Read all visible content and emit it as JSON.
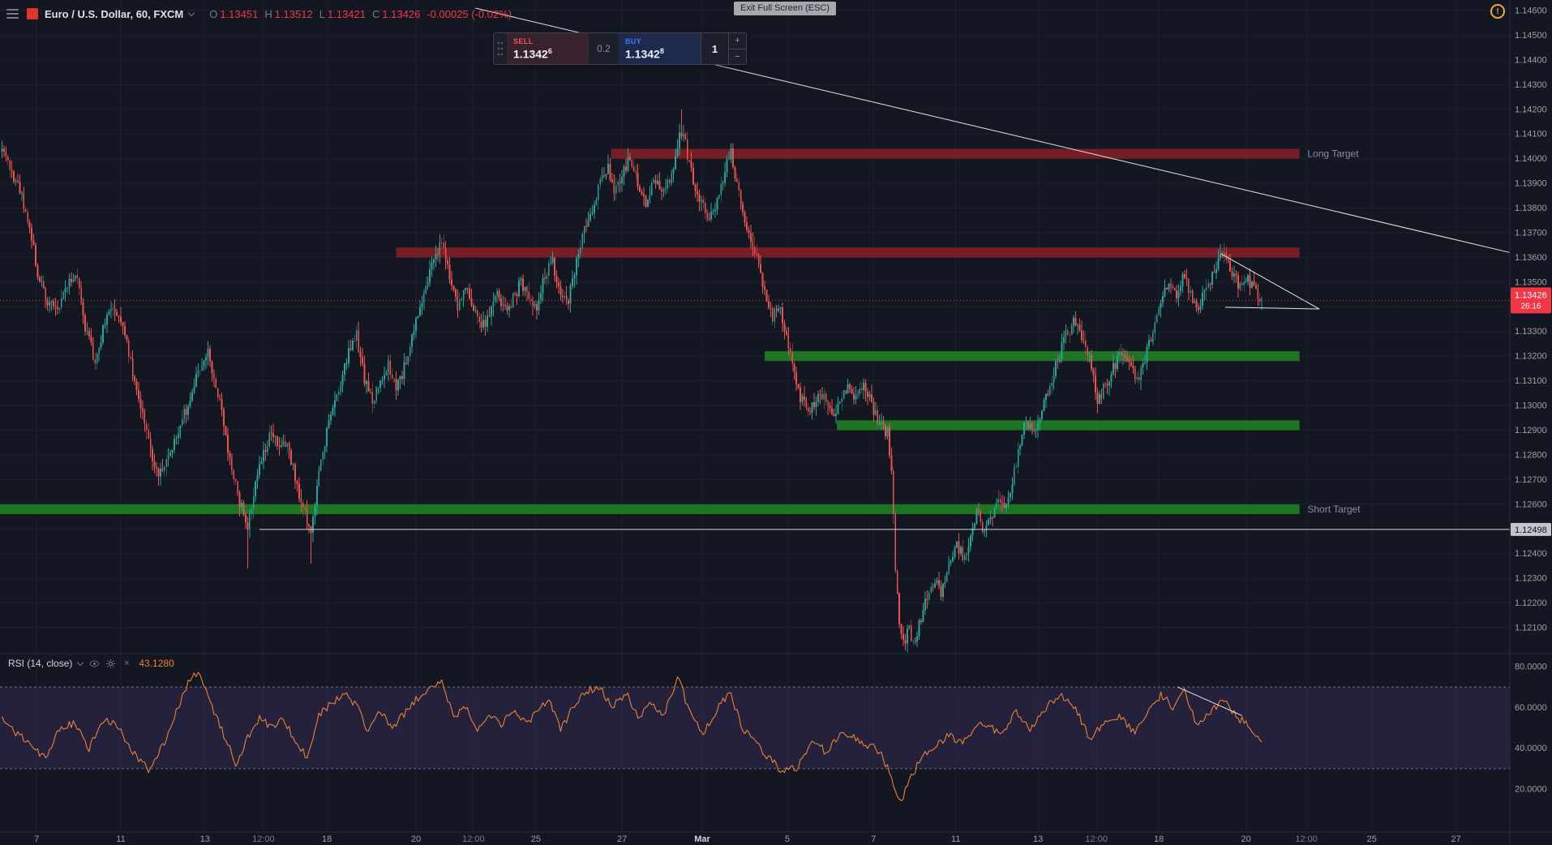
{
  "header": {
    "symbol_title": "Euro / U.S. Dollar, 60, FXCM",
    "ohlc": {
      "o_label": "O",
      "o_value": "1.13451",
      "h_label": "H",
      "h_value": "1.13512",
      "l_label": "L",
      "l_value": "1.13421",
      "c_label": "C",
      "c_value": "1.13426",
      "change": "-0.00025 (-0.02%)"
    }
  },
  "tooltip": {
    "text": "Exit Full Screen (ESC)"
  },
  "order_panel": {
    "sell_label": "SELL",
    "sell_price": "1.1342",
    "sell_sup": "6",
    "spread": "0.2",
    "buy_label": "BUY",
    "buy_price": "1.1342",
    "buy_sup": "8",
    "qty": "1",
    "increase": "+",
    "decrease": "−"
  },
  "alert_icon": {
    "symbol": "!"
  },
  "rsi_header": {
    "title": "RSI (14, close)",
    "value": "43.1280"
  },
  "axis": {
    "price_ticks": [
      "1.14600",
      "1.14500",
      "1.14400",
      "1.14300",
      "1.14200",
      "1.14100",
      "1.14000",
      "1.13900",
      "1.13800",
      "1.13700",
      "1.13600",
      "1.13500",
      "1.13400",
      "1.13300",
      "1.13200",
      "1.13100",
      "1.13000",
      "1.12900",
      "1.12800",
      "1.12700",
      "1.12600",
      "1.12500",
      "1.12400",
      "1.12300",
      "1.12200",
      "1.12100"
    ],
    "rsi_ticks": [
      "80.0000",
      "60.0000",
      "40.0000",
      "20.0000"
    ],
    "time_ticks": [
      {
        "u": 37,
        "label": "7"
      },
      {
        "u": 122,
        "label": "11"
      },
      {
        "u": 207,
        "label": "13"
      },
      {
        "u": 266,
        "label": "12:00"
      },
      {
        "u": 330,
        "label": "18"
      },
      {
        "u": 420,
        "label": "20"
      },
      {
        "u": 478,
        "label": "12:00"
      },
      {
        "u": 541,
        "label": "25"
      },
      {
        "u": 628,
        "label": "27"
      },
      {
        "u": 709,
        "label": "Mar"
      },
      {
        "u": 795,
        "label": "5"
      },
      {
        "u": 882,
        "label": "7"
      },
      {
        "u": 965,
        "label": "11"
      },
      {
        "u": 1048,
        "label": "13"
      },
      {
        "u": 1107,
        "label": "12:00"
      },
      {
        "u": 1170,
        "label": "18"
      },
      {
        "u": 1258,
        "label": "20"
      },
      {
        "u": 1319,
        "label": "12:00"
      },
      {
        "u": 1385,
        "label": "25"
      },
      {
        "u": 1470,
        "label": "27"
      }
    ],
    "current_price_label": "1.13426",
    "countdown": "26:16",
    "hline_label": "1.12498"
  },
  "chart_data": {
    "type": "candlestick",
    "title": "Euro / U.S. Dollar, 60, FXCM",
    "ylim": [
      1.121,
      1.146
    ],
    "current_price": 1.13426,
    "price_anchors": [
      [
        0,
        1.1408
      ],
      [
        10,
        1.1396
      ],
      [
        20,
        1.1388
      ],
      [
        28,
        1.1376
      ],
      [
        38,
        1.1354
      ],
      [
        48,
        1.1342
      ],
      [
        58,
        1.1338
      ],
      [
        68,
        1.135
      ],
      [
        78,
        1.1352
      ],
      [
        86,
        1.1332
      ],
      [
        96,
        1.1318
      ],
      [
        106,
        1.1334
      ],
      [
        116,
        1.134
      ],
      [
        126,
        1.133
      ],
      [
        136,
        1.1308
      ],
      [
        146,
        1.1294
      ],
      [
        154,
        1.1278
      ],
      [
        162,
        1.1272
      ],
      [
        172,
        1.1282
      ],
      [
        182,
        1.1292
      ],
      [
        192,
        1.1302
      ],
      [
        202,
        1.1316
      ],
      [
        210,
        1.1321
      ],
      [
        218,
        1.1308
      ],
      [
        226,
        1.1292
      ],
      [
        234,
        1.1274
      ],
      [
        242,
        1.1261
      ],
      [
        250,
        1.1251
      ],
      [
        258,
        1.127
      ],
      [
        266,
        1.1281
      ],
      [
        274,
        1.129
      ],
      [
        282,
        1.1281
      ],
      [
        290,
        1.1286
      ],
      [
        298,
        1.1271
      ],
      [
        306,
        1.1258
      ],
      [
        314,
        1.1249
      ],
      [
        322,
        1.1272
      ],
      [
        332,
        1.1293
      ],
      [
        342,
        1.1306
      ],
      [
        352,
        1.1321
      ],
      [
        360,
        1.1328
      ],
      [
        368,
        1.1311
      ],
      [
        376,
        1.1301
      ],
      [
        384,
        1.1311
      ],
      [
        392,
        1.1316
      ],
      [
        400,
        1.1306
      ],
      [
        408,
        1.1315
      ],
      [
        416,
        1.1328
      ],
      [
        424,
        1.1341
      ],
      [
        432,
        1.1352
      ],
      [
        440,
        1.136
      ],
      [
        447,
        1.1367
      ],
      [
        454,
        1.1351
      ],
      [
        462,
        1.1341
      ],
      [
        470,
        1.1348
      ],
      [
        478,
        1.1338
      ],
      [
        486,
        1.1331
      ],
      [
        494,
        1.1336
      ],
      [
        502,
        1.1345
      ],
      [
        510,
        1.1338
      ],
      [
        518,
        1.1343
      ],
      [
        526,
        1.135
      ],
      [
        534,
        1.1344
      ],
      [
        542,
        1.1339
      ],
      [
        550,
        1.1353
      ],
      [
        558,
        1.1358
      ],
      [
        566,
        1.1345
      ],
      [
        574,
        1.1343
      ],
      [
        582,
        1.1358
      ],
      [
        590,
        1.1371
      ],
      [
        598,
        1.138
      ],
      [
        606,
        1.139
      ],
      [
        614,
        1.1397
      ],
      [
        620,
        1.1387
      ],
      [
        628,
        1.1394
      ],
      [
        636,
        1.14
      ],
      [
        644,
        1.1391
      ],
      [
        652,
        1.1383
      ],
      [
        660,
        1.1392
      ],
      [
        668,
        1.1387
      ],
      [
        676,
        1.1391
      ],
      [
        684,
        1.1405
      ],
      [
        689,
        1.1413
      ],
      [
        694,
        1.1401
      ],
      [
        702,
        1.1389
      ],
      [
        710,
        1.138
      ],
      [
        718,
        1.1376
      ],
      [
        726,
        1.1386
      ],
      [
        733,
        1.1396
      ],
      [
        737,
        1.1404
      ],
      [
        742,
        1.1394
      ],
      [
        748,
        1.1381
      ],
      [
        756,
        1.1368
      ],
      [
        764,
        1.1359
      ],
      [
        772,
        1.1346
      ],
      [
        780,
        1.1336
      ],
      [
        786,
        1.1341
      ],
      [
        792,
        1.133
      ],
      [
        800,
        1.1316
      ],
      [
        808,
        1.1303
      ],
      [
        816,
        1.1297
      ],
      [
        824,
        1.1302
      ],
      [
        832,
        1.1306
      ],
      [
        840,
        1.1296
      ],
      [
        848,
        1.1301
      ],
      [
        856,
        1.1309
      ],
      [
        864,
        1.1303
      ],
      [
        872,
        1.1309
      ],
      [
        880,
        1.13
      ],
      [
        888,
        1.1293
      ],
      [
        896,
        1.1289
      ],
      [
        900,
        1.1272
      ],
      [
        904,
        1.1235
      ],
      [
        908,
        1.1212
      ],
      [
        913,
        1.1205
      ],
      [
        918,
        1.1209
      ],
      [
        923,
        1.1204
      ],
      [
        928,
        1.1212
      ],
      [
        936,
        1.1222
      ],
      [
        944,
        1.123
      ],
      [
        950,
        1.1224
      ],
      [
        958,
        1.1234
      ],
      [
        966,
        1.1244
      ],
      [
        974,
        1.1238
      ],
      [
        980,
        1.1249
      ],
      [
        987,
        1.1257
      ],
      [
        992,
        1.1248
      ],
      [
        1000,
        1.1254
      ],
      [
        1008,
        1.1264
      ],
      [
        1016,
        1.1259
      ],
      [
        1022,
        1.1269
      ],
      [
        1029,
        1.1284
      ],
      [
        1036,
        1.1294
      ],
      [
        1044,
        1.1288
      ],
      [
        1052,
        1.1297
      ],
      [
        1060,
        1.1309
      ],
      [
        1068,
        1.1319
      ],
      [
        1076,
        1.1328
      ],
      [
        1084,
        1.1334
      ],
      [
        1092,
        1.1328
      ],
      [
        1100,
        1.1318
      ],
      [
        1108,
        1.1302
      ],
      [
        1116,
        1.1308
      ],
      [
        1124,
        1.1315
      ],
      [
        1132,
        1.1322
      ],
      [
        1140,
        1.1317
      ],
      [
        1148,
        1.131
      ],
      [
        1156,
        1.1319
      ],
      [
        1164,
        1.1331
      ],
      [
        1172,
        1.1342
      ],
      [
        1180,
        1.135
      ],
      [
        1188,
        1.1344
      ],
      [
        1195,
        1.1354
      ],
      [
        1202,
        1.1345
      ],
      [
        1209,
        1.1339
      ],
      [
        1216,
        1.1346
      ],
      [
        1223,
        1.1352
      ],
      [
        1230,
        1.1359
      ],
      [
        1237,
        1.1362
      ],
      [
        1244,
        1.1354
      ],
      [
        1251,
        1.1349
      ],
      [
        1258,
        1.1352
      ],
      [
        1265,
        1.1348
      ],
      [
        1271,
        1.1345
      ],
      [
        1275,
        1.13426
      ]
    ],
    "wick_events": [
      {
        "u": 249,
        "low": 1.1234
      },
      {
        "u": 314,
        "low": 1.1236
      },
      {
        "u": 688,
        "high": 1.142
      },
      {
        "u": 914,
        "low": 1.1201
      }
    ],
    "zones": [
      {
        "label": "Long Target",
        "price_top": 1.1404,
        "price_bottom": 1.14,
        "u0": 617,
        "u1": 1312,
        "color": "#7e1f27"
      },
      {
        "label": "",
        "price_top": 1.1364,
        "price_bottom": 1.136,
        "u0": 400,
        "u1": 1312,
        "color": "#7e1f27"
      },
      {
        "label": "",
        "price_top": 1.1322,
        "price_bottom": 1.1318,
        "u0": 772,
        "u1": 1312,
        "color": "#1e7d24"
      },
      {
        "label": "",
        "price_top": 1.1294,
        "price_bottom": 1.129,
        "u0": 845,
        "u1": 1312,
        "color": "#1e7d24"
      },
      {
        "label": "Short Target",
        "price_top": 1.126,
        "price_bottom": 1.1256,
        "u0": 0,
        "u1": 1312,
        "color": "#1e7d24"
      }
    ],
    "zone_label_u": 1320,
    "trendlines": [
      {
        "u": [
          480,
          1524
        ],
        "price": [
          1.1461,
          1.1362
        ]
      },
      {
        "u": [
          1233,
          1332
        ],
        "price": [
          1.13614,
          1.13391
        ]
      },
      {
        "u": [
          1237,
          1332
        ],
        "price": [
          1.13398,
          1.13391
        ]
      }
    ],
    "hline": {
      "price": 1.12498,
      "u0": 262
    },
    "rsi": {
      "period": 14,
      "source": "close",
      "last": 43.128,
      "upper_band": 70,
      "lower_band": 30,
      "ylim": [
        0,
        100
      ],
      "anchors": [
        [
          0,
          55
        ],
        [
          15,
          48
        ],
        [
          30,
          42
        ],
        [
          45,
          35
        ],
        [
          60,
          50
        ],
        [
          75,
          52
        ],
        [
          90,
          40
        ],
        [
          105,
          55
        ],
        [
          120,
          50
        ],
        [
          135,
          38
        ],
        [
          150,
          30
        ],
        [
          165,
          42
        ],
        [
          180,
          60
        ],
        [
          192,
          74
        ],
        [
          202,
          77
        ],
        [
          212,
          62
        ],
        [
          225,
          48
        ],
        [
          238,
          32
        ],
        [
          250,
          45
        ],
        [
          262,
          55
        ],
        [
          274,
          50
        ],
        [
          286,
          54
        ],
        [
          298,
          44
        ],
        [
          310,
          36
        ],
        [
          322,
          56
        ],
        [
          335,
          62
        ],
        [
          348,
          67
        ],
        [
          360,
          61
        ],
        [
          372,
          48
        ],
        [
          384,
          58
        ],
        [
          396,
          50
        ],
        [
          408,
          57
        ],
        [
          420,
          64
        ],
        [
          432,
          69
        ],
        [
          447,
          72
        ],
        [
          458,
          55
        ],
        [
          470,
          60
        ],
        [
          482,
          49
        ],
        [
          494,
          56
        ],
        [
          506,
          52
        ],
        [
          518,
          58
        ],
        [
          530,
          52
        ],
        [
          542,
          57
        ],
        [
          554,
          64
        ],
        [
          566,
          50
        ],
        [
          578,
          59
        ],
        [
          590,
          67
        ],
        [
          605,
          71
        ],
        [
          618,
          60
        ],
        [
          632,
          67
        ],
        [
          645,
          55
        ],
        [
          658,
          62
        ],
        [
          670,
          56
        ],
        [
          685,
          76
        ],
        [
          695,
          58
        ],
        [
          710,
          48
        ],
        [
          725,
          60
        ],
        [
          737,
          67
        ],
        [
          750,
          50
        ],
        [
          762,
          43
        ],
        [
          775,
          36
        ],
        [
          790,
          28
        ],
        [
          805,
          31
        ],
        [
          820,
          43
        ],
        [
          835,
          38
        ],
        [
          850,
          48
        ],
        [
          865,
          45
        ],
        [
          878,
          41
        ],
        [
          890,
          38
        ],
        [
          902,
          22
        ],
        [
          910,
          14
        ],
        [
          920,
          26
        ],
        [
          930,
          35
        ],
        [
          945,
          42
        ],
        [
          958,
          46
        ],
        [
          972,
          42
        ],
        [
          985,
          52
        ],
        [
          998,
          50
        ],
        [
          1012,
          48
        ],
        [
          1025,
          58
        ],
        [
          1040,
          50
        ],
        [
          1055,
          60
        ],
        [
          1070,
          66
        ],
        [
          1085,
          61
        ],
        [
          1100,
          45
        ],
        [
          1115,
          52
        ],
        [
          1130,
          56
        ],
        [
          1145,
          48
        ],
        [
          1158,
          58
        ],
        [
          1172,
          66
        ],
        [
          1185,
          60
        ],
        [
          1195,
          69
        ],
        [
          1208,
          52
        ],
        [
          1222,
          58
        ],
        [
          1235,
          63
        ],
        [
          1248,
          56
        ],
        [
          1262,
          50
        ],
        [
          1275,
          43.128
        ]
      ]
    },
    "rsi_trendline": {
      "u": [
        1189,
        1254
      ],
      "v": [
        70,
        56
      ]
    },
    "colors": {
      "background": "#131722",
      "grid": "rgba(255,255,255,0.04)",
      "up": "#26a69a",
      "down": "#ef5350",
      "zone_label": "#8b909c",
      "trendline": "#e3e5ea",
      "current_line": "#f23645",
      "hline": "#cfd3da",
      "hline_label_bg": "#c3c6cc",
      "hline_label_text": "#10131a",
      "rsi_line": "#ef8132",
      "rsi_fill": "rgba(126,87,194,0.16)",
      "rsi_band": "#8a8e99",
      "axis_text": "#9aa0a6",
      "axis_text_dim": "#787b86",
      "axis_text_bright": "#d1d4dc",
      "separator": "#2a2e39",
      "price_label_bg": "#f23645"
    }
  }
}
